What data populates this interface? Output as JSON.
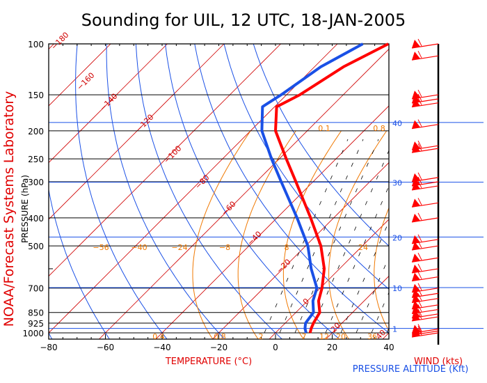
{
  "chart_data": {
    "type": "line",
    "title": "Sounding for UIL, 12 UTC, 18-JAN-2005",
    "side_label": "NOAA/Forecast Systems Laboratory",
    "xlabel": "TEMPERATURE (°C)",
    "ylabel": "PRESSURE (hPa)",
    "altitude_label": "PRESSURE ALTITUDE (Kft)",
    "wind_label": "WIND (kts)",
    "xlim": [
      -80,
      40
    ],
    "ylim": [
      1000,
      100
    ],
    "x_ticks": [
      -80,
      -60,
      -40,
      -20,
      0,
      20,
      40
    ],
    "x_tick_labels": [
      "−80",
      "−60",
      "−40",
      "−20",
      "0",
      "20",
      "40"
    ],
    "pressure_ticks": [
      100,
      150,
      200,
      250,
      300,
      400,
      500,
      700,
      850,
      925,
      1000
    ],
    "altitude_ticks": [
      {
        "kft": 40,
        "p": 187
      },
      {
        "kft": 30,
        "p": 301
      },
      {
        "kft": 20,
        "p": 466
      },
      {
        "kft": 10,
        "p": 697
      },
      {
        "kft": 1,
        "p": 965
      }
    ],
    "dry_adiabat_labels": [
      "−180",
      "−160",
      "−140",
      "−120",
      "−100",
      "−80",
      "−60",
      "−40",
      "−20",
      "0",
      "20",
      "40"
    ],
    "moist_adiabat_labels": [
      "−56",
      "−40",
      "−24",
      "−8",
      "8",
      "24"
    ],
    "mixing_ratio_labels": [
      "0.1",
      "0.8",
      "0.4",
      "0.8",
      "2",
      "7",
      "12",
      "20",
      "36"
    ],
    "series": [
      {
        "name": "Temperature",
        "color": "#ff0000",
        "points": [
          {
            "p": 1000,
            "t": 12.2
          },
          {
            "p": 965,
            "t": 12.6
          },
          {
            "p": 925,
            "t": 13.4
          },
          {
            "p": 850,
            "t": 15.6
          },
          {
            "p": 775,
            "t": 15.2
          },
          {
            "p": 700,
            "t": 16.4
          },
          {
            "p": 600,
            "t": 17.2
          },
          {
            "p": 500,
            "t": 16.0
          },
          {
            "p": 400,
            "t": 12.4
          },
          {
            "p": 300,
            "t": 7.2
          },
          {
            "p": 250,
            "t": 3.8
          },
          {
            "p": 200,
            "t": 0.0
          },
          {
            "p": 165,
            "t": 0.4
          },
          {
            "p": 150,
            "t": 8.6
          },
          {
            "p": 120,
            "t": 24.0
          },
          {
            "p": 100,
            "t": 39.8
          }
        ]
      },
      {
        "name": "Dewpoint",
        "color": "#1a50e6",
        "points": [
          {
            "p": 1000,
            "t": 10.8
          },
          {
            "p": 965,
            "t": 10.4
          },
          {
            "p": 925,
            "t": 10.6
          },
          {
            "p": 850,
            "t": 13.4
          },
          {
            "p": 775,
            "t": 13.2
          },
          {
            "p": 700,
            "t": 14.6
          },
          {
            "p": 600,
            "t": 12.6
          },
          {
            "p": 500,
            "t": 11.4
          },
          {
            "p": 400,
            "t": 7.6
          },
          {
            "p": 300,
            "t": 2.0
          },
          {
            "p": 250,
            "t": -1.4
          },
          {
            "p": 200,
            "t": -4.8
          },
          {
            "p": 165,
            "t": -4.6
          },
          {
            "p": 150,
            "t": 2.0
          },
          {
            "p": 120,
            "t": 16.0
          },
          {
            "p": 100,
            "t": 30.8
          }
        ]
      }
    ],
    "wind_barbs": [
      {
        "p": 100
      },
      {
        "p": 110
      },
      {
        "p": 150
      },
      {
        "p": 155
      },
      {
        "p": 160
      },
      {
        "p": 190
      },
      {
        "p": 225
      },
      {
        "p": 230
      },
      {
        "p": 290
      },
      {
        "p": 300
      },
      {
        "p": 310
      },
      {
        "p": 355
      },
      {
        "p": 400
      },
      {
        "p": 475
      },
      {
        "p": 500
      },
      {
        "p": 550
      },
      {
        "p": 600
      },
      {
        "p": 640
      },
      {
        "p": 700
      },
      {
        "p": 730
      },
      {
        "p": 760
      },
      {
        "p": 800
      },
      {
        "p": 830
      },
      {
        "p": 860
      },
      {
        "p": 880
      },
      {
        "p": 970
      },
      {
        "p": 985
      },
      {
        "p": 1000
      }
    ],
    "grid": true
  }
}
